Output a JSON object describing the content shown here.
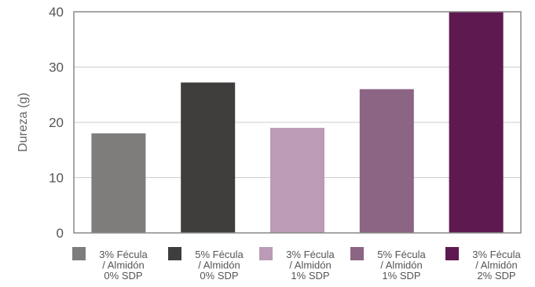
{
  "chart_data": {
    "type": "bar",
    "title": "",
    "xlabel": "",
    "ylabel": "Dureza (g)",
    "ylim": [
      0,
      40
    ],
    "yticks": [
      0,
      10,
      20,
      30,
      40
    ],
    "grid": true,
    "legend_position": "bottom",
    "categories": [
      [
        "3% Fécula",
        "/ Almidón",
        "0% SDP"
      ],
      [
        "5% Fécula",
        "/ Almidón",
        "0% SDP"
      ],
      [
        "3% Fécula",
        "/ Almidón",
        "1% SDP"
      ],
      [
        "5% Fécula",
        "/ Almidón",
        "1% SDP"
      ],
      [
        "3% Fécula",
        "/ Almidón",
        "2% SDP"
      ]
    ],
    "values": [
      18,
      27.2,
      19,
      26,
      40
    ],
    "colors": [
      "#7f7c7c",
      "#403e3c",
      "#bb9bb6",
      "#8c6484",
      "#5e1a50"
    ]
  }
}
